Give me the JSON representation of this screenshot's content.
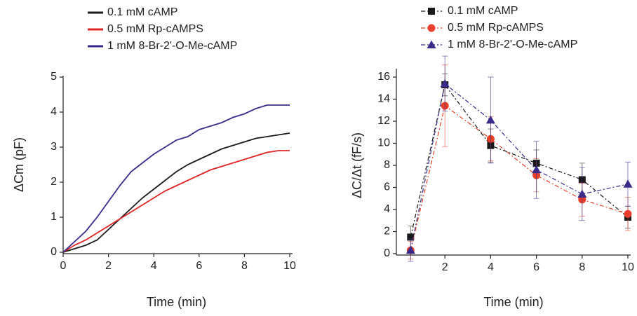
{
  "chart_data": [
    {
      "type": "line",
      "xlabel": "Time (min)",
      "ylabel": "ΔCm (pF)",
      "x": [
        0,
        0.5,
        1,
        1.5,
        2,
        2.5,
        3,
        3.5,
        4,
        4.5,
        5,
        5.5,
        6,
        6.5,
        7,
        7.5,
        8,
        8.5,
        9,
        9.5,
        10
      ],
      "series": [
        {
          "name": "0.1 mM cAMP",
          "color": "#1a1a1a",
          "values": [
            0,
            0.1,
            0.2,
            0.35,
            0.65,
            0.95,
            1.25,
            1.55,
            1.8,
            2.05,
            2.3,
            2.5,
            2.65,
            2.8,
            2.95,
            3.05,
            3.15,
            3.25,
            3.3,
            3.35,
            3.4
          ]
        },
        {
          "name": "0.5 mM Rp-cAMPS",
          "color": "#e02424",
          "values": [
            0,
            0.2,
            0.35,
            0.55,
            0.75,
            0.95,
            1.15,
            1.35,
            1.55,
            1.75,
            1.9,
            2.05,
            2.2,
            2.35,
            2.45,
            2.55,
            2.65,
            2.75,
            2.85,
            2.9,
            2.9
          ]
        },
        {
          "name": "1 mM 8-Br-2'-O-Me-cAMP",
          "color": "#3a2a8c",
          "values": [
            0,
            0.3,
            0.6,
            1.0,
            1.45,
            1.9,
            2.3,
            2.55,
            2.8,
            3.0,
            3.2,
            3.3,
            3.5,
            3.6,
            3.7,
            3.85,
            3.95,
            4.1,
            4.2,
            4.2,
            4.2
          ]
        }
      ],
      "xlim": [
        0,
        10
      ],
      "ylim": [
        0,
        5
      ],
      "xticks": [
        0,
        2,
        4,
        6,
        8,
        10
      ],
      "yticks": [
        0,
        1,
        2,
        3,
        4,
        5
      ]
    },
    {
      "type": "errorline",
      "xlabel": "Time (min)",
      "ylabel": "ΔC/Δt (fF/s)",
      "x": [
        0.5,
        2,
        4,
        6,
        8,
        10
      ],
      "series": [
        {
          "name": "0.1 mM cAMP",
          "color": "#1a1a1a",
          "marker": "square",
          "values": [
            1.5,
            15.3,
            9.8,
            8.2,
            6.7,
            3.3
          ],
          "errors": [
            1,
            1,
            1.5,
            1.2,
            1.5,
            1
          ]
        },
        {
          "name": "0.5 mM Rp-cAMPS",
          "color": "#e8402a",
          "marker": "circle",
          "values": [
            0.3,
            13.4,
            10.4,
            7.1,
            4.9,
            3.6
          ],
          "errors": [
            0.8,
            3.7,
            2,
            1.5,
            1.5,
            1.5
          ]
        },
        {
          "name": "1 mM 8-Br-2'-O-Me-cAMP",
          "color": "#3a2a8c",
          "marker": "triangle",
          "values": [
            0.3,
            15.4,
            12.1,
            7.6,
            5.4,
            6.3
          ],
          "errors": [
            1,
            2.5,
            3.9,
            2.6,
            2.4,
            2
          ]
        }
      ],
      "xlim": [
        0,
        10
      ],
      "ylim": [
        0,
        16
      ],
      "xticks": [
        2,
        4,
        6,
        8,
        10
      ],
      "yticks": [
        0,
        2,
        4,
        6,
        8,
        10,
        12,
        14,
        16
      ]
    }
  ]
}
